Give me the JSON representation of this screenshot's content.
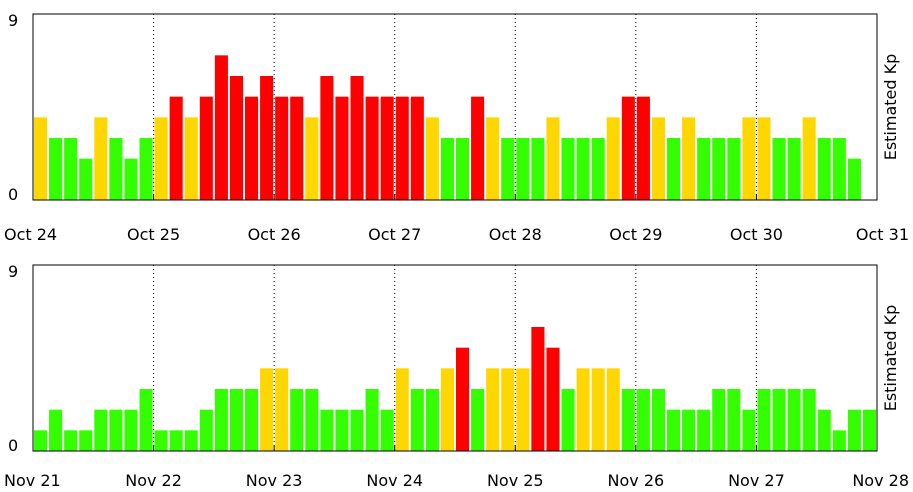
{
  "colors": {
    "quiet": "#33ff00",
    "active": "#ffd700",
    "storm": "#ff0000",
    "axis": "#000000"
  },
  "chart_data": [
    {
      "type": "bar",
      "ylabel": "Estimated Kp",
      "ylim": [
        0,
        9
      ],
      "yticks": [
        "0",
        "9"
      ],
      "xticks": [
        "Oct 24",
        "Oct 25",
        "Oct 26",
        "Oct 27",
        "Oct 28",
        "Oct 29",
        "Oct 30",
        "Oct 31"
      ],
      "bars_per_day": 8,
      "grid": "vertical dotted day separators",
      "values": [
        4,
        3,
        3,
        2,
        4,
        3,
        2,
        3,
        4,
        5,
        4,
        5,
        7,
        6,
        5,
        6,
        5,
        5,
        4,
        6,
        5,
        6,
        5,
        5,
        5,
        5,
        4,
        3,
        3,
        5,
        4,
        3,
        3,
        3,
        4,
        3,
        3,
        3,
        4,
        5,
        5,
        4,
        3,
        4,
        3,
        3,
        3,
        4,
        4,
        3,
        3,
        4,
        3,
        3,
        2
      ]
    },
    {
      "type": "bar",
      "ylabel": "Estimated Kp",
      "ylim": [
        0,
        9
      ],
      "yticks": [
        "0",
        "9"
      ],
      "xticks": [
        "Nov 21",
        "Nov 22",
        "Nov 23",
        "Nov 24",
        "Nov 25",
        "Nov 26",
        "Nov 27",
        "Nov 28"
      ],
      "bars_per_day": 8,
      "grid": "vertical dotted day separators",
      "values": [
        1,
        2,
        1,
        1,
        2,
        2,
        2,
        3,
        1,
        1,
        1,
        2,
        3,
        3,
        3,
        4,
        4,
        3,
        3,
        2,
        2,
        2,
        3,
        2,
        4,
        3,
        3,
        4,
        5,
        3,
        4,
        4,
        4,
        6,
        5,
        3,
        4,
        4,
        4,
        3,
        3,
        3,
        2,
        2,
        2,
        3,
        3,
        2,
        3,
        3,
        3,
        3,
        2,
        1,
        2,
        2
      ]
    }
  ]
}
